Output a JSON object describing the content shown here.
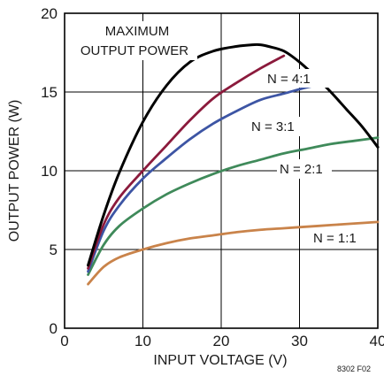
{
  "chart_data": {
    "type": "line",
    "title": "",
    "xlabel": "INPUT VOLTAGE (V)",
    "ylabel": "OUTPUT POWER (W)",
    "xlim": [
      0,
      40
    ],
    "ylim": [
      0,
      20
    ],
    "x_ticks": [
      "0",
      "10",
      "20",
      "30",
      "40"
    ],
    "y_ticks": [
      "0",
      "5",
      "10",
      "15",
      "20"
    ],
    "grid": true,
    "figure_id": "8302 F02",
    "series": [
      {
        "name": "MAXIMUM OUTPUT POWER",
        "color": "#000000",
        "x": [
          3,
          5,
          7,
          10,
          13,
          16,
          19,
          22,
          24,
          25,
          26,
          28,
          30,
          32,
          34,
          36,
          38,
          40
        ],
        "y": [
          4.0,
          7.2,
          9.9,
          13.1,
          15.4,
          16.9,
          17.6,
          17.9,
          18.0,
          18.0,
          17.9,
          17.6,
          16.9,
          16.0,
          15.0,
          13.9,
          12.8,
          11.5
        ]
      },
      {
        "name": "N = 4:1",
        "color": "#8b1a3c",
        "x": [
          3,
          5,
          7,
          10,
          13,
          16,
          19,
          22,
          25,
          28
        ],
        "y": [
          3.8,
          6.6,
          8.3,
          10.0,
          11.6,
          13.2,
          14.6,
          15.6,
          16.5,
          17.3
        ]
      },
      {
        "name": "N = 3:1",
        "color": "#3d55a4",
        "x": [
          3,
          5,
          7,
          10,
          13,
          16,
          19,
          22,
          25,
          28,
          31,
          34
        ],
        "y": [
          3.6,
          6.2,
          7.8,
          9.5,
          10.8,
          12.0,
          13.0,
          13.8,
          14.5,
          14.9,
          15.3,
          15.6
        ]
      },
      {
        "name": "N = 2:1",
        "color": "#3f8a5a",
        "x": [
          3,
          5,
          7,
          10,
          13,
          16,
          19,
          22,
          25,
          28,
          31,
          34,
          37,
          40
        ],
        "y": [
          3.4,
          5.3,
          6.5,
          7.6,
          8.5,
          9.2,
          9.8,
          10.3,
          10.7,
          11.1,
          11.4,
          11.7,
          11.9,
          12.1
        ]
      },
      {
        "name": "N = 1:1",
        "color": "#c9834a",
        "x": [
          3,
          5,
          7,
          10,
          13,
          16,
          19,
          22,
          25,
          28,
          31,
          34,
          37,
          40
        ],
        "y": [
          2.8,
          3.9,
          4.5,
          5.0,
          5.4,
          5.7,
          5.9,
          6.1,
          6.25,
          6.35,
          6.45,
          6.55,
          6.65,
          6.75
        ]
      }
    ],
    "annotations": {
      "max_line1": "MAXIMUM",
      "max_line2": "OUTPUT POWER",
      "n41": "N = 4:1",
      "n31": "N = 3:1",
      "n21": "N = 2:1",
      "n11": "N = 1:1"
    }
  }
}
